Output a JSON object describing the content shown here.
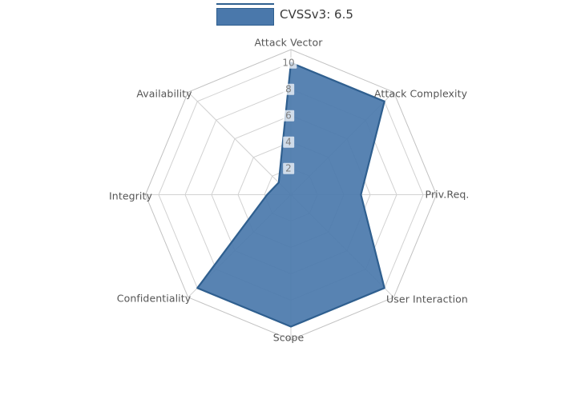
{
  "page": {
    "background_color": "#ffffff"
  },
  "legend": {
    "label": "CVSSv3: 6.5"
  },
  "chart_data": {
    "type": "radar",
    "title": "",
    "categories": [
      "Attack Vector",
      "Attack Complexity",
      "Priv.Req.",
      "User Interaction",
      "Scope",
      "Confidentiality",
      "Integrity",
      "Availability"
    ],
    "series": [
      {
        "name": "CVSSv3: 6.5",
        "values": [
          10,
          10,
          5.3,
          10,
          10,
          10,
          1.8,
          1.3
        ],
        "fill_color": "#4a78ab",
        "fill_opacity": 0.92,
        "edge_color": "#2f5f8f"
      }
    ],
    "radial_ticks": [
      2,
      4,
      6,
      8,
      10
    ],
    "rmax": 11,
    "start_angle_deg": 90,
    "direction": "clockwise",
    "grid": true,
    "grid_shape": "polygon",
    "grid_color": "#d2d2d2",
    "outer_frame_color": "#c2c2c2",
    "tick_label_color": "#7e7e7e",
    "axis_label_color": "#555555",
    "legend_position": "top-center"
  }
}
